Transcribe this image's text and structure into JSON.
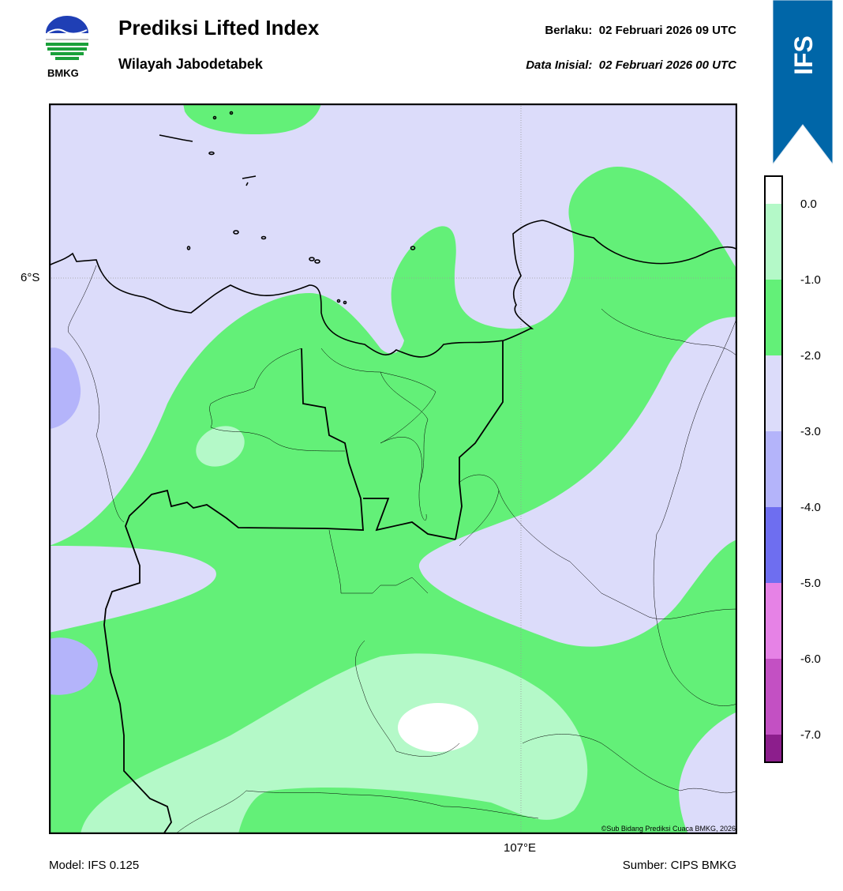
{
  "header": {
    "title": "Prediksi Lifted Index",
    "subtitle": "Wilayah Jabodetabek",
    "valid_label": "Berlaku:",
    "valid_time": "02 Februari 2026 09 UTC",
    "init_label": "Data Inisial:",
    "init_time": "02 Februari 2026 00 UTC"
  },
  "logo": {
    "text": "BMKG",
    "icon": "bmkg-logo-icon"
  },
  "ribbon": {
    "text": "IFS",
    "color": "#0066a8"
  },
  "map": {
    "lat_label": "6°S",
    "lon_label": "107°E",
    "credit": "©Sub Bidang Prediksi Cuaca BMKG, 2026"
  },
  "colorbar": {
    "ticks": [
      "0.0",
      "-1.0",
      "-2.0",
      "-3.0",
      "-4.0",
      "-5.0",
      "-6.0",
      "-7.0"
    ],
    "colors": {
      "gt_0": "#ffffff",
      "0_to_-1": "#b4f9c8",
      "-1_to_-2": "#63f078",
      "-2_to_-3": "#dcdcfa",
      "-3_to_-4": "#b4b4fa",
      "-4_to_-5": "#6e6ef0",
      "-5_to_-6": "#e682e6",
      "-6_to_-7": "#c350c3",
      "lt_-7": "#8c1e8c"
    }
  },
  "footer": {
    "model": "Model: IFS 0.125",
    "source": "Sumber: CIPS BMKG"
  }
}
